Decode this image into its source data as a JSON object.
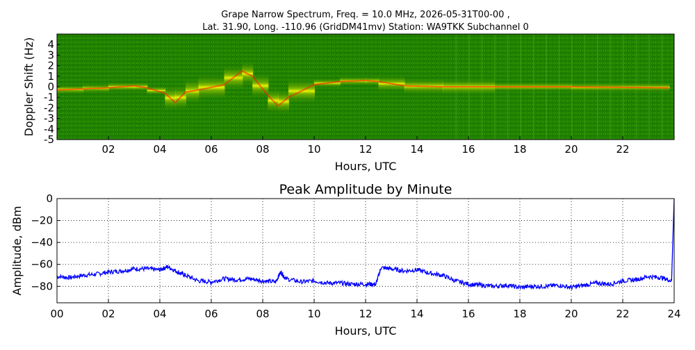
{
  "chart_data": [
    {
      "type": "heatmap",
      "title_line1": "Grape Narrow Spectrum, Freq. = 10.0 MHz, 2026-05-31T00-00 ,",
      "title_line2": "Lat.  31.90, Long. -110.96 (GridDM41mv) Station: WA9TKK Subchannel 0",
      "xlabel": "Hours, UTC",
      "ylabel": "Doppler Shift (Hz)",
      "xlim": [
        0,
        24
      ],
      "ylim": [
        -5,
        5
      ],
      "x_ticks": [
        "02",
        "04",
        "06",
        "08",
        "10",
        "12",
        "14",
        "16",
        "18",
        "20",
        "22"
      ],
      "y_ticks": [
        "4",
        "3",
        "2",
        "1",
        "0",
        "-1",
        "-2",
        "-3",
        "-4",
        "-5"
      ],
      "colors": {
        "background": "#1a7a00",
        "mid": "#9acd00",
        "high": "#ffff00",
        "peak": "#ff2000"
      },
      "doppler_trace": [
        {
          "x": 0.0,
          "y": -0.3
        },
        {
          "x": 1.0,
          "y": -0.2
        },
        {
          "x": 2.0,
          "y": -0.1
        },
        {
          "x": 3.0,
          "y": 0.1
        },
        {
          "x": 3.5,
          "y": -0.1
        },
        {
          "x": 4.2,
          "y": -0.6
        },
        {
          "x": 4.6,
          "y": -1.5
        },
        {
          "x": 5.0,
          "y": -0.5
        },
        {
          "x": 5.5,
          "y": -0.3
        },
        {
          "x": 6.5,
          "y": 0.2
        },
        {
          "x": 7.2,
          "y": 1.5
        },
        {
          "x": 7.6,
          "y": 1.0
        },
        {
          "x": 8.2,
          "y": -0.8
        },
        {
          "x": 8.6,
          "y": -1.8
        },
        {
          "x": 9.0,
          "y": -1.0
        },
        {
          "x": 10.0,
          "y": 0.2
        },
        {
          "x": 11.0,
          "y": 0.5
        },
        {
          "x": 12.0,
          "y": 0.6
        },
        {
          "x": 12.5,
          "y": 0.5
        },
        {
          "x": 13.5,
          "y": 0.1
        },
        {
          "x": 15.0,
          "y": 0.0
        },
        {
          "x": 17.0,
          "y": 0.0
        },
        {
          "x": 20.0,
          "y": 0.0
        },
        {
          "x": 23.8,
          "y": -0.1
        }
      ]
    },
    {
      "type": "line",
      "title": "Peak Amplitude by Minute",
      "xlabel": "Hours, UTC",
      "ylabel": "Amplitude, dBm",
      "xlim": [
        0,
        24
      ],
      "ylim": [
        -95,
        0
      ],
      "x_ticks": [
        "00",
        "02",
        "04",
        "06",
        "08",
        "10",
        "12",
        "14",
        "16",
        "18",
        "20",
        "22",
        "24"
      ],
      "y_ticks": [
        "0",
        "−20",
        "−40",
        "−60",
        "−80"
      ],
      "grid": true,
      "line_color": "#0000ff",
      "series": [
        {
          "x": [
            0.0,
            0.5,
            1.0,
            1.5,
            2.0,
            2.5,
            3.0,
            3.5,
            4.0,
            4.3,
            4.7,
            5.0,
            5.5,
            6.0,
            6.5,
            7.0,
            7.5,
            8.0,
            8.5,
            8.7,
            8.9,
            9.5,
            10.0,
            10.5,
            11.0,
            11.5,
            12.0,
            12.4,
            12.6,
            13.0,
            13.5,
            14.0,
            14.5,
            15.0,
            15.5,
            16.0,
            16.5,
            17.0,
            17.5,
            18.0,
            18.5,
            19.0,
            19.5,
            20.0,
            20.5,
            21.0,
            21.5,
            22.0,
            22.5,
            23.0,
            23.5,
            23.9
          ],
          "y": [
            -71,
            -72,
            -70,
            -69,
            -67,
            -66,
            -64,
            -64,
            -65,
            -62,
            -67,
            -70,
            -75,
            -76,
            -73,
            -74,
            -73,
            -75,
            -76,
            -67,
            -73,
            -76,
            -75,
            -77,
            -77,
            -78,
            -78,
            -78,
            -63,
            -64,
            -66,
            -65,
            -68,
            -70,
            -75,
            -78,
            -79,
            -80,
            -79,
            -81,
            -80,
            -80,
            -79,
            -81,
            -79,
            -77,
            -78,
            -75,
            -74,
            -71,
            -72,
            -75
          ]
        }
      ]
    }
  ]
}
